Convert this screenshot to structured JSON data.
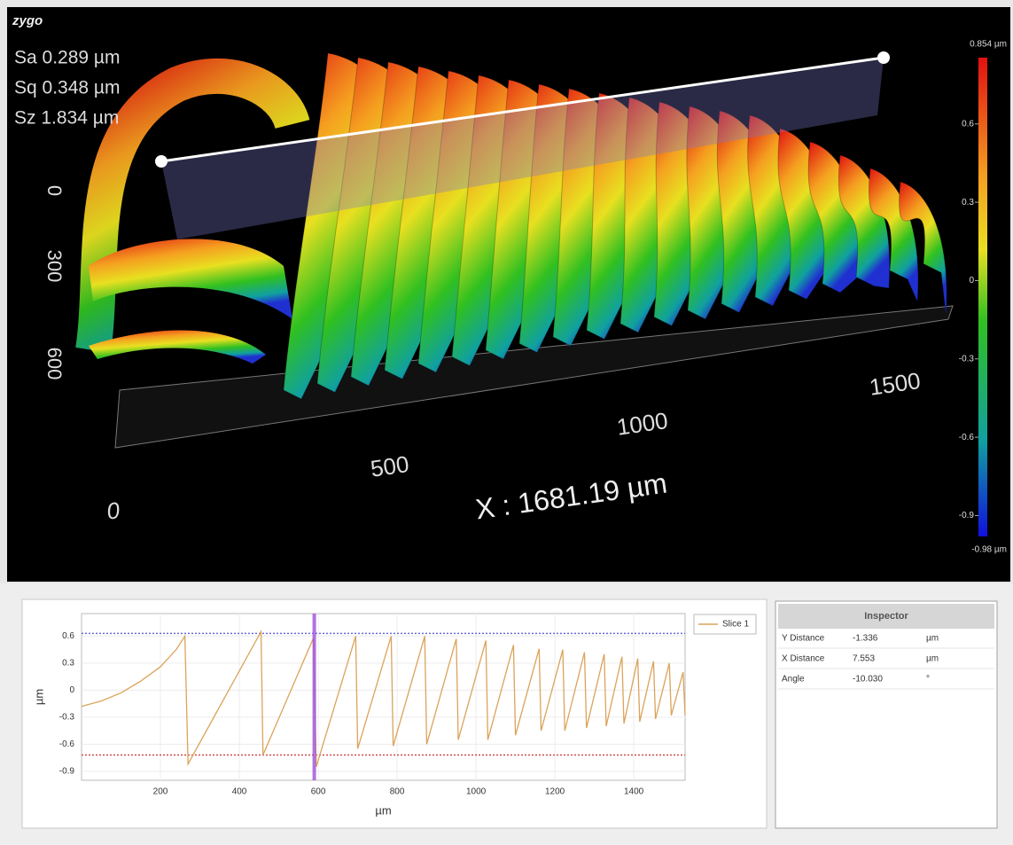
{
  "surface_view": {
    "logo": "zygo",
    "stats": [
      "Sa 0.289 µm",
      "Sq 0.348 µm",
      "Sz 1.834 µm"
    ],
    "y_axis_labels": [
      "0",
      "300",
      "600"
    ],
    "x_axis_labels": [
      "0",
      "500",
      "1000",
      "1500"
    ],
    "x_extent": "X : 1681.19 µm",
    "colorbar": {
      "max_label": "0.854 µm",
      "min_label": "-0.98 µm",
      "lim": [
        -0.98,
        0.854
      ],
      "ticks": [
        0.6,
        0.3,
        0,
        -0.3,
        -0.6,
        -0.9
      ]
    }
  },
  "profile_chart": {
    "type": "line",
    "xlabel": "µm",
    "ylabel": "µm",
    "xlim": [
      0,
      1530
    ],
    "ylim": [
      -1.0,
      0.85
    ],
    "xticks": [
      200,
      400,
      600,
      800,
      1000,
      1200,
      1400
    ],
    "yticks": [
      0.6,
      0.3,
      0,
      -0.3,
      -0.6,
      -0.9
    ],
    "series": [
      {
        "name": "Slice 1",
        "color": "#dba35a",
        "x": [
          0,
          50,
          100,
          150,
          200,
          240,
          262,
          270,
          455,
          460,
          588,
          595,
          695,
          700,
          785,
          790,
          870,
          875,
          950,
          955,
          1025,
          1030,
          1095,
          1100,
          1160,
          1165,
          1220,
          1225,
          1275,
          1280,
          1325,
          1330,
          1370,
          1375,
          1410,
          1415,
          1450,
          1455,
          1490,
          1495,
          1525,
          1530
        ],
        "values": [
          -0.18,
          -0.12,
          -0.03,
          0.1,
          0.26,
          0.45,
          0.6,
          -0.82,
          0.65,
          -0.72,
          0.58,
          -0.85,
          0.6,
          -0.65,
          0.6,
          -0.62,
          0.6,
          -0.6,
          0.57,
          -0.55,
          0.55,
          -0.55,
          0.5,
          -0.5,
          0.46,
          -0.45,
          0.45,
          -0.45,
          0.42,
          -0.42,
          0.4,
          -0.4,
          0.37,
          -0.37,
          0.35,
          -0.35,
          0.32,
          -0.32,
          0.3,
          -0.28,
          0.2,
          -0.28
        ]
      }
    ],
    "reference_lines": [
      {
        "value": 0.63,
        "color": "#6b6bdf"
      },
      {
        "value": -0.72,
        "color": "#d04a4a"
      }
    ],
    "cursor_x": 590,
    "cursor_color": "#a050d8"
  },
  "inspector": {
    "title": "Inspector",
    "rows": [
      [
        "Y Distance",
        "-1.336",
        "µm"
      ],
      [
        "X Distance",
        "7.553",
        "µm"
      ],
      [
        "Angle",
        "-10.030",
        "°"
      ]
    ]
  }
}
